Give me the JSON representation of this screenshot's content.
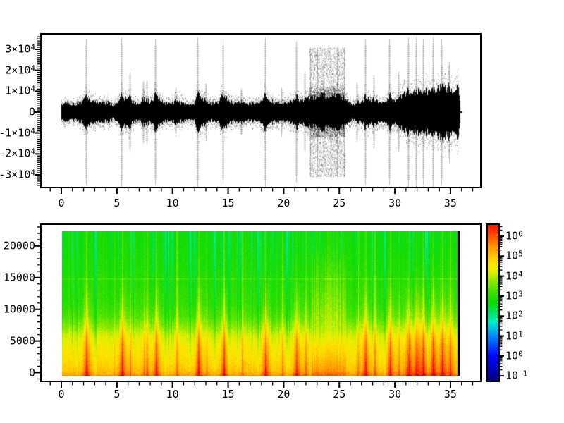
{
  "figure": {
    "background": "#ffffff",
    "frame_color": "#000000",
    "tick_color": "#000000",
    "trace_color": "#000000"
  },
  "chart_data": [
    {
      "type": "line",
      "name": "audio-waveform",
      "title": "",
      "xlabel": "",
      "ylabel": "",
      "xlim": [
        -1.8,
        37.6
      ],
      "ylim": [
        -35600,
        37100
      ],
      "xticks": [
        {
          "value": 0,
          "label": "0"
        },
        {
          "value": 5,
          "label": "5"
        },
        {
          "value": 10,
          "label": "10"
        },
        {
          "value": 15,
          "label": "15"
        },
        {
          "value": 20,
          "label": "20"
        },
        {
          "value": 25,
          "label": "25"
        },
        {
          "value": 30,
          "label": "30"
        },
        {
          "value": 35,
          "label": "35"
        }
      ],
      "yticks": [
        {
          "value": 30000,
          "label": "3×10^4"
        },
        {
          "value": 20000,
          "label": "2×10^4"
        },
        {
          "value": 10000,
          "label": "1×10^4"
        },
        {
          "value": 0,
          "label": "0"
        },
        {
          "value": -10000,
          "label": "-1×10^4"
        },
        {
          "value": -20000,
          "label": "-2×10^4"
        },
        {
          "value": -30000,
          "label": "-3×10^4"
        }
      ],
      "x_minor_step": 1,
      "y_minor_step": 1000,
      "series_color": "#000000",
      "end_time": 35.8,
      "envelope": [
        [
          0,
          3600
        ],
        [
          0.5,
          4200
        ],
        [
          1.0,
          3800
        ],
        [
          1.5,
          4000
        ],
        [
          2.0,
          5200
        ],
        [
          2.2,
          8800
        ],
        [
          2.45,
          6500
        ],
        [
          3.0,
          4600
        ],
        [
          3.5,
          4200
        ],
        [
          4.2,
          4600
        ],
        [
          4.7,
          3000
        ],
        [
          5.2,
          5200
        ],
        [
          5.4,
          8600
        ],
        [
          5.7,
          6200
        ],
        [
          6.15,
          6800
        ],
        [
          6.5,
          4400
        ],
        [
          7.0,
          4200
        ],
        [
          7.35,
          6200
        ],
        [
          7.65,
          6400
        ],
        [
          8.0,
          4300
        ],
        [
          8.45,
          8600
        ],
        [
          8.8,
          5800
        ],
        [
          9.3,
          4200
        ],
        [
          10.0,
          4400
        ],
        [
          10.3,
          5400
        ],
        [
          10.9,
          4000
        ],
        [
          11.5,
          3600
        ],
        [
          12.0,
          4600
        ],
        [
          12.25,
          8800
        ],
        [
          12.6,
          6400
        ],
        [
          13.0,
          5400
        ],
        [
          13.5,
          4000
        ],
        [
          14.1,
          4200
        ],
        [
          14.55,
          8600
        ],
        [
          15.0,
          5600
        ],
        [
          15.6,
          4200
        ],
        [
          16.2,
          4800
        ],
        [
          16.8,
          4200
        ],
        [
          17.4,
          4000
        ],
        [
          18.0,
          4600
        ],
        [
          18.3,
          8600
        ],
        [
          18.7,
          5600
        ],
        [
          19.3,
          4200
        ],
        [
          19.8,
          5000
        ],
        [
          20.3,
          4400
        ],
        [
          20.7,
          4800
        ],
        [
          21.1,
          7800
        ],
        [
          21.5,
          4800
        ],
        [
          21.9,
          6000
        ],
        [
          22.35,
          6800
        ],
        [
          23.0,
          7200
        ],
        [
          23.5,
          7800
        ],
        [
          24.0,
          7600
        ],
        [
          24.5,
          8000
        ],
        [
          25.0,
          7400
        ],
        [
          25.45,
          6800
        ],
        [
          25.8,
          4400
        ],
        [
          26.2,
          3600
        ],
        [
          26.6,
          5200
        ],
        [
          27.0,
          4400
        ],
        [
          27.3,
          7600
        ],
        [
          27.7,
          5400
        ],
        [
          28.1,
          6200
        ],
        [
          28.6,
          4600
        ],
        [
          29.1,
          4400
        ],
        [
          29.5,
          8000
        ],
        [
          29.9,
          5600
        ],
        [
          30.3,
          7000
        ],
        [
          30.7,
          8200
        ],
        [
          31.2,
          10400
        ],
        [
          31.6,
          9000
        ],
        [
          31.9,
          11000
        ],
        [
          32.3,
          9600
        ],
        [
          32.5,
          11400
        ],
        [
          32.9,
          10000
        ],
        [
          33.4,
          12000
        ],
        [
          33.8,
          10400
        ],
        [
          34.2,
          12600
        ],
        [
          34.6,
          11000
        ],
        [
          34.9,
          12200
        ],
        [
          35.2,
          11400
        ],
        [
          35.5,
          12600
        ],
        [
          35.7,
          11000
        ],
        [
          35.8,
          6000
        ]
      ],
      "events": [
        [
          2.2,
          34500
        ],
        [
          5.4,
          35500
        ],
        [
          6.15,
          19000
        ],
        [
          7.35,
          14500
        ],
        [
          7.65,
          15000
        ],
        [
          8.45,
          34500
        ],
        [
          10.3,
          11500
        ],
        [
          12.25,
          35500
        ],
        [
          13.0,
          13500
        ],
        [
          14.55,
          34500
        ],
        [
          16.2,
          11000
        ],
        [
          18.3,
          35500
        ],
        [
          19.8,
          11500
        ],
        [
          21.1,
          33500
        ],
        [
          21.9,
          19500
        ],
        [
          26.6,
          14000
        ],
        [
          27.3,
          34500
        ],
        [
          28.1,
          17500
        ],
        [
          29.5,
          34500
        ],
        [
          30.3,
          19000
        ],
        [
          31.2,
          35500
        ],
        [
          31.9,
          35500
        ],
        [
          32.5,
          34500
        ],
        [
          33.4,
          35500
        ],
        [
          34.2,
          34500
        ],
        [
          34.9,
          24000
        ]
      ],
      "noise_block": {
        "t0": 22.35,
        "t1": 25.5,
        "peak": 30800
      },
      "end_marker_value": 0
    },
    {
      "type": "heatmap",
      "name": "spectrogram",
      "title": "",
      "xlabel": "",
      "ylabel": "",
      "xlim": [
        -1.8,
        37.6
      ],
      "ylim": [
        -1300,
        23250
      ],
      "xticks": [
        {
          "value": 0,
          "label": "0"
        },
        {
          "value": 5,
          "label": "5"
        },
        {
          "value": 10,
          "label": "10"
        },
        {
          "value": 15,
          "label": "15"
        },
        {
          "value": 20,
          "label": "20"
        },
        {
          "value": 25,
          "label": "25"
        },
        {
          "value": 30,
          "label": "30"
        },
        {
          "value": 35,
          "label": "35"
        }
      ],
      "yticks": [
        {
          "value": 0,
          "label": "0"
        },
        {
          "value": 5000,
          "label": "5000"
        },
        {
          "value": 10000,
          "label": "10000"
        },
        {
          "value": 15000,
          "label": "15000"
        },
        {
          "value": 20000,
          "label": "20000"
        }
      ],
      "x_minor_step": 1,
      "y_minor_step": 1000,
      "time_range": [
        0,
        35.8
      ],
      "freq_range": [
        0,
        22050
      ],
      "colormap": "jet",
      "scale": "log10",
      "clim_log10": [
        -1.25,
        6.57
      ],
      "colorbar_ticks": [
        {
          "log10": 6,
          "label": "10^6"
        },
        {
          "log10": 5,
          "label": "10^5"
        },
        {
          "log10": 4,
          "label": "10^4"
        },
        {
          "log10": 3,
          "label": "10^3"
        },
        {
          "log10": 2,
          "label": "10^2"
        },
        {
          "log10": 1,
          "label": "10^1"
        },
        {
          "log10": 0,
          "label": "10^0"
        },
        {
          "log10": -1,
          "label": "10^-1"
        }
      ],
      "freq_profile_log10": [
        [
          0,
          5.45
        ],
        [
          150,
          5.3
        ],
        [
          500,
          5.05
        ],
        [
          1500,
          4.85
        ],
        [
          3000,
          4.62
        ],
        [
          4500,
          4.45
        ],
        [
          6000,
          4.18
        ],
        [
          7500,
          3.72
        ],
        [
          9000,
          3.32
        ],
        [
          11000,
          3.05
        ],
        [
          14000,
          2.92
        ],
        [
          18000,
          2.78
        ],
        [
          22050,
          2.68
        ]
      ],
      "events": [
        [
          2.2,
          34500
        ],
        [
          5.4,
          35500
        ],
        [
          6.15,
          19000
        ],
        [
          7.35,
          14500
        ],
        [
          7.65,
          15000
        ],
        [
          8.45,
          34500
        ],
        [
          10.3,
          11500
        ],
        [
          12.25,
          35500
        ],
        [
          13.0,
          13500
        ],
        [
          14.55,
          34500
        ],
        [
          16.2,
          11000
        ],
        [
          18.3,
          35500
        ],
        [
          19.8,
          11500
        ],
        [
          21.1,
          33500
        ],
        [
          21.9,
          19500
        ],
        [
          26.6,
          14000
        ],
        [
          27.3,
          34500
        ],
        [
          28.1,
          17500
        ],
        [
          29.5,
          34500
        ],
        [
          30.3,
          19000
        ],
        [
          31.2,
          35500
        ],
        [
          31.9,
          35500
        ],
        [
          32.5,
          34500
        ],
        [
          33.4,
          35500
        ],
        [
          34.2,
          34500
        ],
        [
          34.9,
          24000
        ]
      ],
      "noise_block": {
        "t0": 22.4,
        "t1": 25.5
      },
      "bright_lines": [
        4.7,
        10.35,
        13.0,
        16.2,
        19.8,
        26.6,
        28.1,
        30.3
      ],
      "dark_lines": [
        3.0,
        9.3,
        11.5,
        17.6,
        20.2,
        27.9,
        29.0
      ],
      "horizontal_line_hz": 14800,
      "end_bar_color": "#000000",
      "color_stops": [
        [
          -1.25,
          [
            0,
            0,
            127
          ]
        ],
        [
          0,
          [
            0,
            8,
            255
          ]
        ],
        [
          1,
          [
            0,
            140,
            255
          ]
        ],
        [
          1.7,
          [
            0,
            238,
            200
          ]
        ],
        [
          2.2,
          [
            0,
            225,
            96
          ]
        ],
        [
          2.7,
          [
            13,
            220,
            0
          ]
        ],
        [
          3.2,
          [
            60,
            224,
            0
          ]
        ],
        [
          3.7,
          [
            130,
            232,
            0
          ]
        ],
        [
          4.2,
          [
            222,
            240,
            0
          ]
        ],
        [
          4.6,
          [
            255,
            230,
            0
          ]
        ],
        [
          5.0,
          [
            255,
            198,
            0
          ]
        ],
        [
          5.4,
          [
            255,
            158,
            0
          ]
        ],
        [
          5.8,
          [
            255,
            112,
            0
          ]
        ],
        [
          6.3,
          [
            255,
            48,
            0
          ]
        ],
        [
          7.0,
          [
            208,
            0,
            0
          ]
        ]
      ]
    }
  ]
}
